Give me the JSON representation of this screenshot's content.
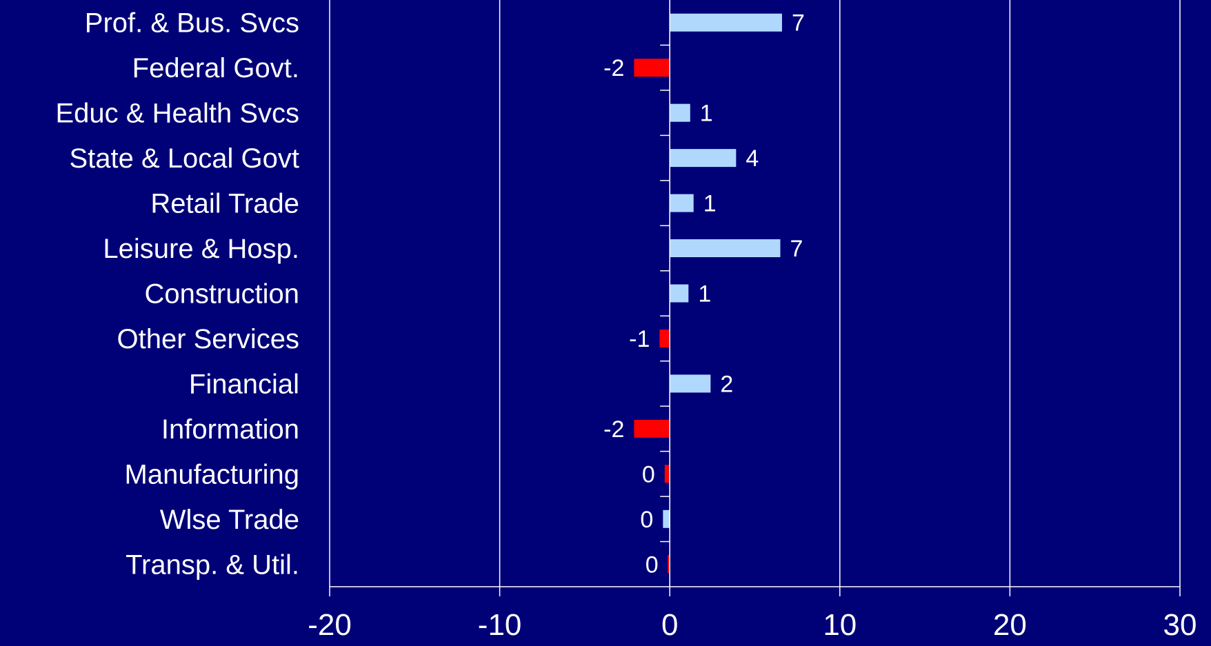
{
  "chart_data": {
    "type": "bar",
    "orientation": "horizontal",
    "title": "",
    "xlabel": "",
    "ylabel": "",
    "categories": [
      "Prof. & Bus. Svcs",
      "Federal Govt.",
      "Educ & Health Svcs",
      "State & Local Govt",
      "Retail Trade",
      "Leisure & Hosp.",
      "Construction",
      "Other Services",
      "Financial",
      "Information",
      "Manufacturing",
      "Wlse Trade",
      "Transp. & Util."
    ],
    "values": [
      6.6,
      -2.1,
      1.2,
      3.9,
      1.4,
      6.5,
      1.1,
      -0.6,
      2.4,
      -2.1,
      -0.3,
      -0.4,
      -0.1
    ],
    "data_labels": [
      "7",
      "-2",
      "1",
      "4",
      "1",
      "7",
      "1",
      "-1",
      "2",
      "-2",
      "0",
      "0",
      "0"
    ],
    "bar_colors": [
      "#b0d8ff",
      "#ff0000",
      "#b0d8ff",
      "#b0d8ff",
      "#b0d8ff",
      "#b0d8ff",
      "#b0d8ff",
      "#ff0000",
      "#b0d8ff",
      "#ff0000",
      "#ff0000",
      "#b0d8ff",
      "#ff0000"
    ],
    "xlim": [
      -20,
      30
    ],
    "xticks": [
      -20,
      -10,
      0,
      10,
      20,
      30
    ],
    "xtick_labels": [
      "-20",
      "-10",
      "0",
      "10",
      "20",
      "30"
    ],
    "grid": true,
    "legend": "none"
  },
  "colors": {
    "background": "#000077",
    "axis": "#ffffff",
    "gridline": "#ffffff",
    "text": "#ffffff",
    "positive_bar": "#b0d8ff",
    "negative_bar": "#ff0000"
  }
}
